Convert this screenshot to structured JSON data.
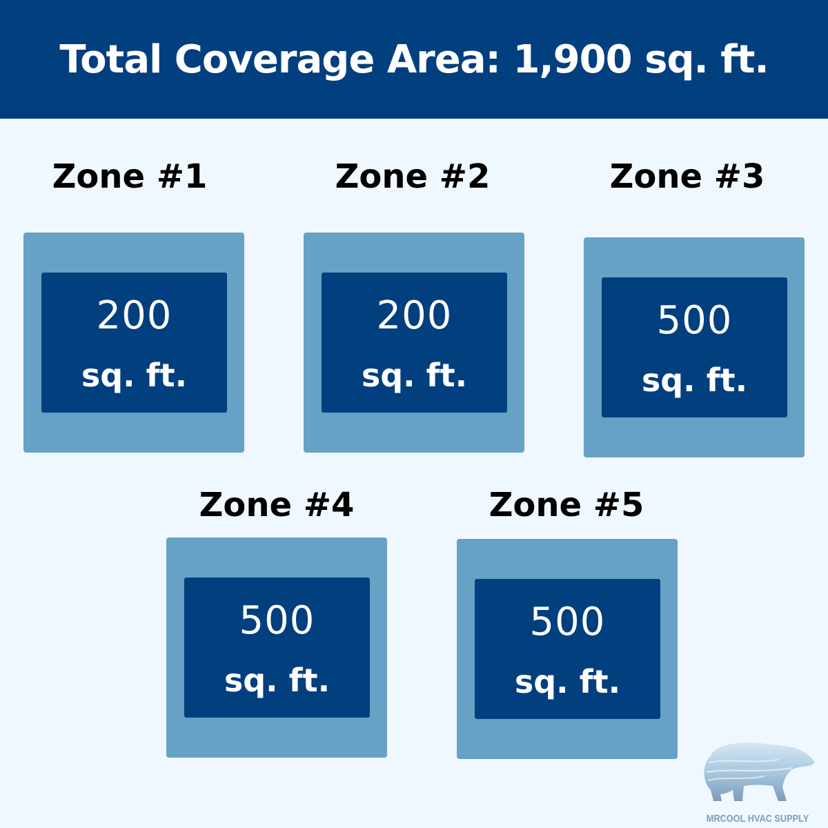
{
  "header": {
    "title": "Total Coverage Area: 1,900 sq. ft."
  },
  "zones": [
    {
      "label": "Zone #1",
      "area": "200",
      "unit": "sq. ft."
    },
    {
      "label": "Zone #2",
      "area": "200",
      "unit": "sq. ft."
    },
    {
      "label": "Zone #3",
      "area": "500",
      "unit": "sq. ft."
    },
    {
      "label": "Zone #4",
      "area": "500",
      "unit": "sq. ft."
    },
    {
      "label": "Zone #5",
      "area": "500",
      "unit": "sq. ft."
    }
  ],
  "logo": {
    "text": "MRCOOL HVAC SUPPLY",
    "icon": "polar-bear-icon"
  },
  "colors": {
    "header": "#023f7f",
    "background": "#eff8fe",
    "outer_box": "#67a1c6",
    "inner_box": "#023f7f"
  }
}
